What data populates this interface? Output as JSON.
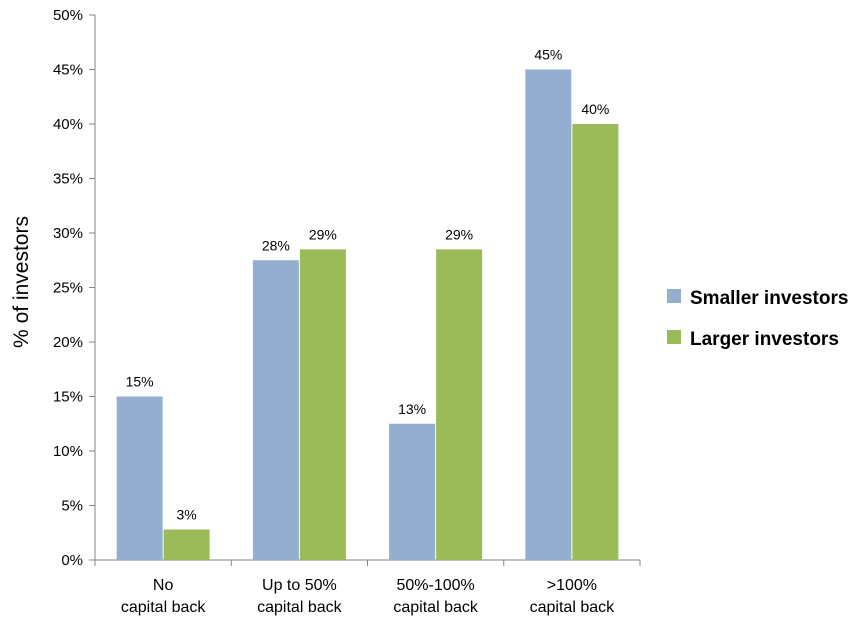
{
  "chart_data": {
    "type": "bar",
    "ylabel": "% of investors",
    "ylim": [
      0,
      50
    ],
    "ytick_step": 5,
    "ytick_suffix": "%",
    "grid": false,
    "legend_position": "right",
    "categories": [
      [
        "No",
        "capital back"
      ],
      [
        "Up to 50%",
        "capital back"
      ],
      [
        "50%-100%",
        "capital back"
      ],
      [
        ">100%",
        "capital back"
      ]
    ],
    "series": [
      {
        "name": "Smaller investors",
        "color": "#93AECE",
        "values": [
          15,
          27.5,
          12.5,
          45
        ],
        "labels": [
          "15%",
          "28%",
          "13%",
          "45%"
        ]
      },
      {
        "name": "Larger investors",
        "color": "#9BBB59",
        "values": [
          2.8,
          28.5,
          28.5,
          40
        ],
        "labels": [
          "3%",
          "29%",
          "29%",
          "40%"
        ]
      }
    ]
  }
}
